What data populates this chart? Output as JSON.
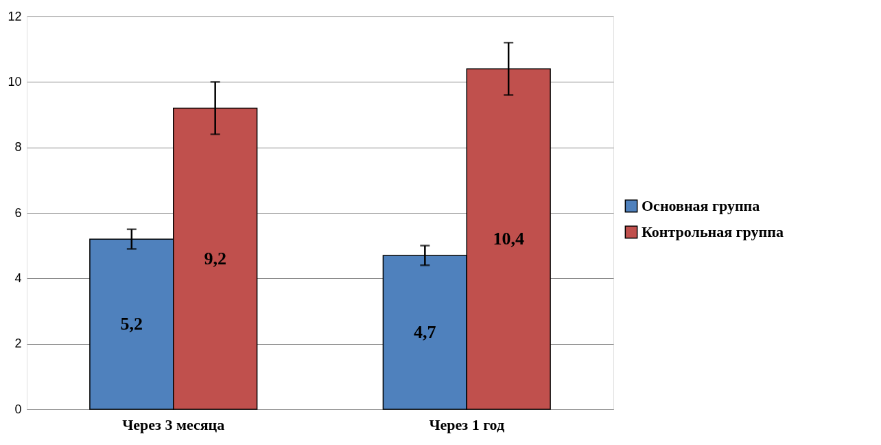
{
  "chart_data": {
    "type": "bar",
    "categories": [
      "Через 3 месяца",
      "Через 1 год"
    ],
    "series": [
      {
        "name": "Основная группа",
        "color": "#4f81bd",
        "values": [
          5.2,
          4.7
        ],
        "errors": [
          0.3,
          0.3
        ],
        "value_labels": [
          "5,2",
          "4,7"
        ]
      },
      {
        "name": "Контрольная группа",
        "color": "#c0504d",
        "values": [
          9.2,
          10.4
        ],
        "errors": [
          0.8,
          0.8
        ],
        "value_labels": [
          "9,2",
          "10,4"
        ]
      }
    ],
    "ylim": [
      0,
      12
    ],
    "yticks": [
      0,
      2,
      4,
      6,
      8,
      10,
      12
    ],
    "grid": "y",
    "legend": "right"
  }
}
